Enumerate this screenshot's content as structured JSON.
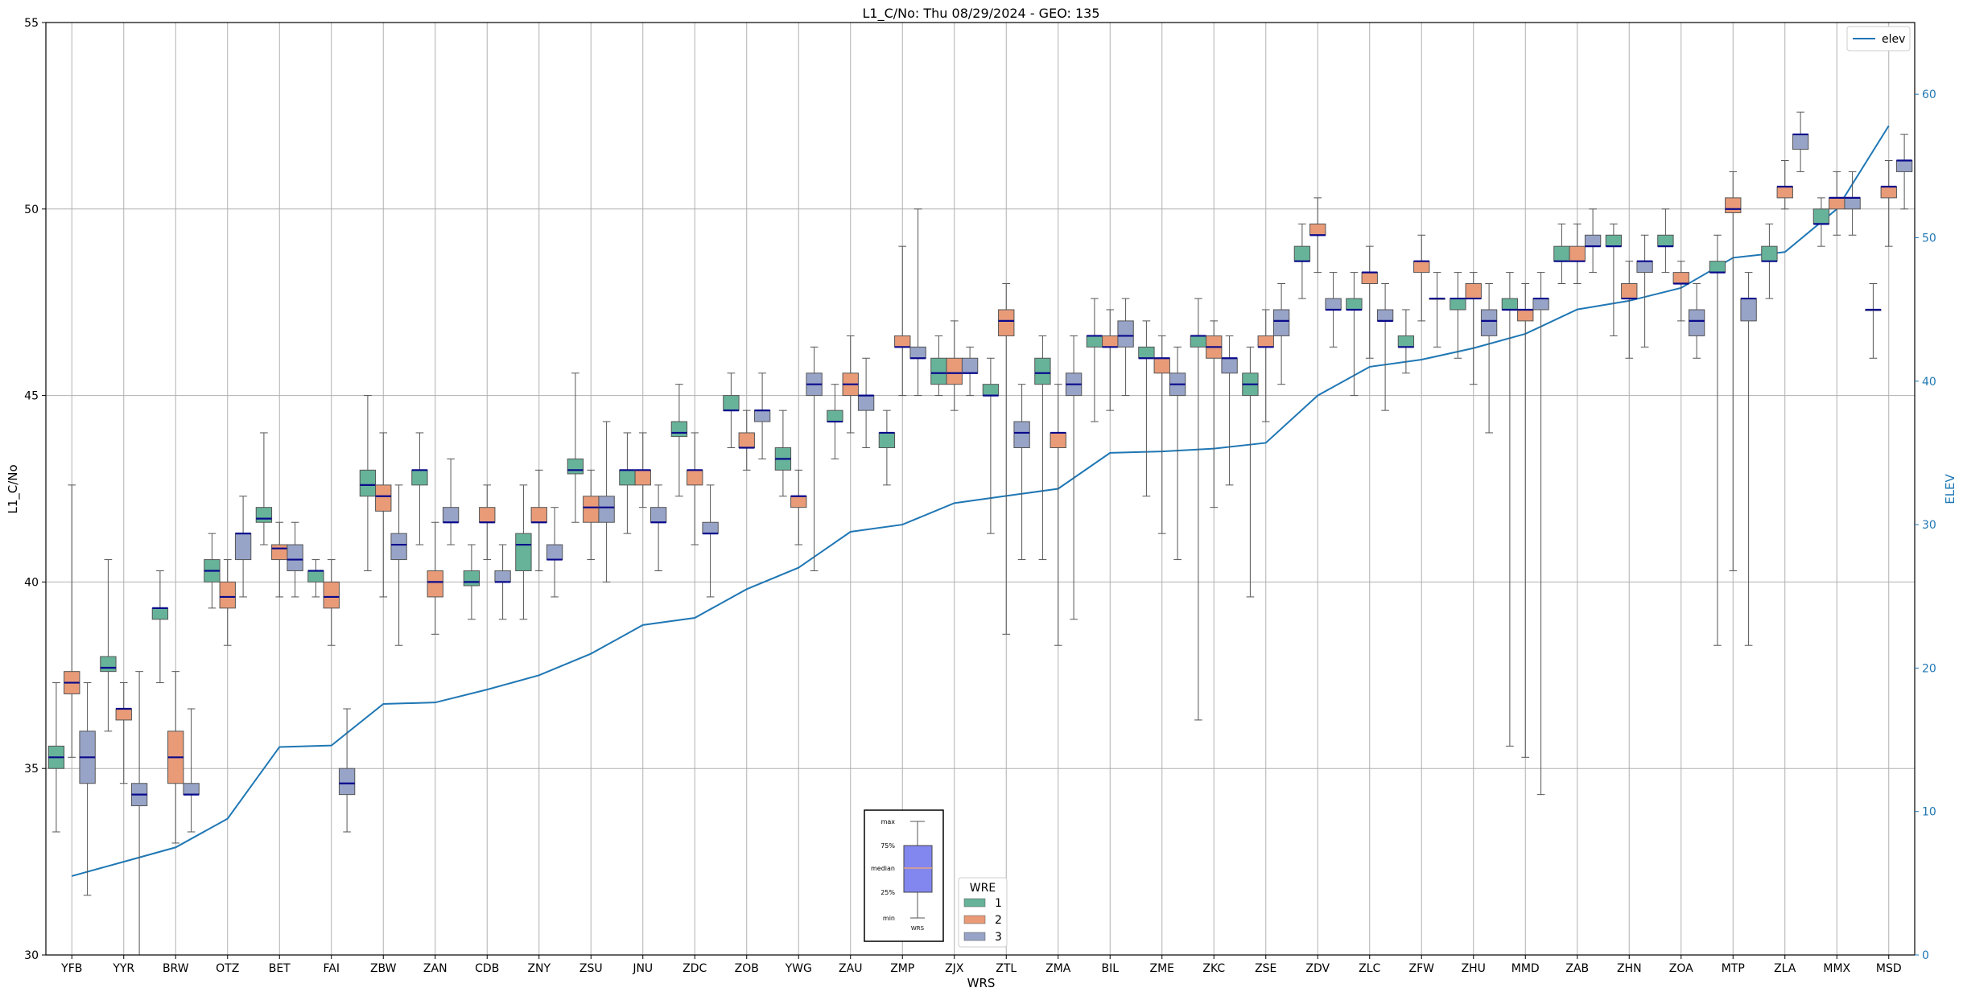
{
  "chart_data": {
    "type": "box",
    "title": "L1_C/No: Thu 08/29/2024 - GEO: 135",
    "xlabel": "WRS",
    "ylabel": "L1_C/No",
    "y2label": "ELEV",
    "ylim": [
      30,
      55
    ],
    "y2lim": [
      0,
      65
    ],
    "yticks": [
      30,
      35,
      40,
      45,
      50,
      55
    ],
    "y2ticks": [
      0,
      10,
      20,
      30,
      40,
      50,
      60
    ],
    "grid": true,
    "categories": [
      "YFB",
      "YYR",
      "BRW",
      "OTZ",
      "BET",
      "FAI",
      "ZBW",
      "ZAN",
      "CDB",
      "ZNY",
      "ZSU",
      "JNU",
      "ZDC",
      "ZOB",
      "YWG",
      "ZAU",
      "ZMP",
      "ZJX",
      "ZTL",
      "ZMA",
      "BIL",
      "ZME",
      "ZKC",
      "ZSE",
      "ZDV",
      "ZLC",
      "ZFW",
      "ZHU",
      "MMD",
      "ZAB",
      "ZHN",
      "ZOA",
      "MTP",
      "ZLA",
      "MMX",
      "MSD"
    ],
    "series": [
      {
        "name": "1",
        "color": "#66b39a",
        "boxes": [
          [
            33.3,
            35.0,
            35.3,
            35.6,
            37.3
          ],
          [
            36.0,
            37.6,
            37.7,
            38.0,
            40.6
          ],
          [
            37.3,
            39.0,
            39.3,
            39.3,
            40.3
          ],
          [
            39.3,
            40.0,
            40.3,
            40.6,
            41.3
          ],
          [
            41.0,
            41.6,
            41.7,
            42.0,
            44.0
          ],
          [
            39.6,
            40.0,
            40.3,
            40.3,
            40.6
          ],
          [
            40.3,
            42.3,
            42.6,
            43.0,
            45.0
          ],
          [
            41.0,
            42.6,
            43.0,
            43.0,
            44.0
          ],
          [
            39.0,
            39.9,
            40.0,
            40.3,
            41.0
          ],
          [
            39.0,
            40.3,
            41.0,
            41.3,
            42.6
          ],
          [
            41.6,
            42.9,
            43.0,
            43.3,
            45.6
          ],
          [
            41.3,
            42.6,
            43.0,
            43.0,
            44.0
          ],
          [
            42.3,
            43.9,
            44.0,
            44.3,
            45.3
          ],
          [
            43.6,
            44.6,
            44.6,
            45.0,
            45.6
          ],
          [
            42.3,
            43.0,
            43.3,
            43.6,
            44.6
          ],
          [
            43.3,
            44.3,
            44.3,
            44.6,
            45.3
          ],
          [
            42.6,
            43.6,
            44.0,
            44.0,
            44.6
          ],
          [
            45.0,
            45.3,
            45.6,
            46.0,
            46.6
          ],
          [
            41.3,
            45.0,
            45.0,
            45.3,
            46.0
          ],
          [
            40.6,
            45.3,
            45.6,
            46.0,
            46.6
          ],
          [
            44.3,
            46.3,
            46.6,
            46.6,
            47.6
          ],
          [
            42.3,
            46.0,
            46.0,
            46.3,
            47.0
          ],
          [
            36.3,
            46.3,
            46.6,
            46.6,
            47.6
          ],
          [
            39.6,
            45.0,
            45.3,
            45.6,
            46.3
          ],
          [
            47.6,
            48.6,
            48.6,
            49.0,
            49.6
          ],
          [
            45.0,
            47.3,
            47.3,
            47.6,
            48.3
          ],
          [
            45.6,
            46.3,
            46.3,
            46.6,
            47.3
          ],
          [
            46.0,
            47.3,
            47.6,
            47.6,
            48.3
          ],
          [
            35.6,
            47.3,
            47.3,
            47.6,
            48.3
          ],
          [
            48.0,
            48.6,
            48.6,
            49.0,
            49.6
          ],
          [
            46.6,
            49.0,
            49.0,
            49.3,
            49.6
          ],
          [
            48.3,
            49.0,
            49.0,
            49.3,
            50.0
          ],
          [
            38.3,
            48.3,
            48.3,
            48.6,
            49.3
          ],
          [
            47.6,
            48.6,
            48.6,
            49.0,
            49.6
          ],
          [
            49.0,
            49.6,
            49.6,
            50.0,
            50.3
          ],
          [
            46.0,
            47.3,
            47.3,
            47.3,
            48.0
          ]
        ]
      },
      {
        "name": "2",
        "color": "#e99b78",
        "boxes": [
          [
            35.3,
            37.0,
            37.3,
            37.6,
            42.6
          ],
          [
            34.6,
            36.3,
            36.6,
            36.6,
            37.3
          ],
          [
            33.0,
            34.6,
            35.3,
            36.0,
            37.6
          ],
          [
            38.3,
            39.3,
            39.6,
            40.0,
            40.6
          ],
          [
            39.6,
            40.6,
            40.9,
            41.0,
            41.6
          ],
          [
            38.3,
            39.3,
            39.6,
            40.0,
            40.6
          ],
          [
            39.6,
            41.9,
            42.3,
            42.6,
            44.0
          ],
          [
            38.6,
            39.6,
            40.0,
            40.3,
            41.6
          ],
          [
            40.6,
            41.6,
            41.6,
            42.0,
            42.6
          ],
          [
            40.3,
            41.6,
            41.6,
            42.0,
            43.0
          ],
          [
            40.6,
            41.6,
            42.0,
            42.3,
            43.0
          ],
          [
            42.0,
            42.6,
            43.0,
            43.0,
            44.0
          ],
          [
            41.0,
            42.6,
            43.0,
            43.0,
            44.0
          ],
          [
            43.0,
            43.6,
            43.6,
            44.0,
            44.6
          ],
          [
            41.0,
            42.0,
            42.3,
            42.3,
            43.0
          ],
          [
            44.0,
            45.0,
            45.3,
            45.6,
            46.6
          ],
          [
            45.0,
            46.3,
            46.3,
            46.6,
            49.0
          ],
          [
            44.6,
            45.3,
            45.6,
            46.0,
            47.0
          ],
          [
            38.6,
            46.6,
            47.0,
            47.3,
            48.0
          ],
          [
            38.3,
            43.6,
            44.0,
            44.0,
            45.3
          ],
          [
            44.6,
            46.3,
            46.3,
            46.6,
            47.3
          ],
          [
            41.3,
            45.6,
            46.0,
            46.0,
            46.6
          ],
          [
            42.0,
            46.0,
            46.3,
            46.6,
            47.0
          ],
          [
            44.3,
            46.3,
            46.3,
            46.6,
            47.3
          ],
          [
            48.3,
            49.3,
            49.3,
            49.6,
            50.3
          ],
          [
            46.0,
            48.0,
            48.3,
            48.3,
            49.0
          ],
          [
            47.0,
            48.3,
            48.6,
            48.6,
            49.3
          ],
          [
            45.3,
            47.6,
            47.6,
            48.0,
            48.3
          ],
          [
            35.3,
            47.0,
            47.3,
            47.3,
            48.0
          ],
          [
            48.0,
            48.6,
            48.6,
            49.0,
            49.6
          ],
          [
            46.0,
            47.6,
            47.6,
            48.0,
            48.6
          ],
          [
            47.0,
            48.0,
            48.0,
            48.3,
            48.6
          ],
          [
            40.3,
            49.9,
            50.0,
            50.3,
            51.0
          ],
          [
            50.0,
            50.3,
            50.6,
            50.6,
            51.3
          ],
          [
            49.3,
            50.0,
            50.3,
            50.3,
            51.0
          ],
          [
            49.0,
            50.3,
            50.6,
            50.6,
            51.3
          ]
        ]
      },
      {
        "name": "3",
        "color": "#97a3c7",
        "boxes": [
          [
            31.6,
            34.6,
            35.3,
            36.0,
            37.3
          ],
          [
            30.0,
            34.0,
            34.3,
            34.6,
            37.6
          ],
          [
            33.3,
            34.3,
            34.3,
            34.6,
            36.6
          ],
          [
            39.6,
            40.6,
            41.3,
            41.3,
            42.3
          ],
          [
            39.6,
            40.3,
            40.6,
            41.0,
            41.6
          ],
          [
            33.3,
            34.3,
            34.6,
            35.0,
            36.6
          ],
          [
            38.3,
            40.6,
            41.0,
            41.3,
            42.6
          ],
          [
            41.0,
            41.6,
            41.6,
            42.0,
            43.3
          ],
          [
            39.0,
            40.0,
            40.0,
            40.3,
            41.0
          ],
          [
            39.6,
            40.6,
            40.6,
            41.0,
            42.0
          ],
          [
            40.0,
            41.6,
            42.0,
            42.3,
            44.3
          ],
          [
            40.3,
            41.6,
            41.6,
            42.0,
            42.6
          ],
          [
            39.6,
            41.3,
            41.3,
            41.6,
            42.6
          ],
          [
            43.3,
            44.3,
            44.6,
            44.6,
            45.6
          ],
          [
            40.3,
            45.0,
            45.3,
            45.6,
            46.3
          ],
          [
            43.6,
            44.6,
            45.0,
            45.0,
            46.0
          ],
          [
            45.0,
            46.0,
            46.0,
            46.3,
            50.0
          ],
          [
            45.0,
            45.6,
            45.6,
            46.0,
            46.3
          ],
          [
            40.6,
            43.6,
            44.0,
            44.3,
            45.3
          ],
          [
            39.0,
            45.0,
            45.3,
            45.6,
            46.6
          ],
          [
            45.0,
            46.3,
            46.6,
            47.0,
            47.6
          ],
          [
            40.6,
            45.0,
            45.3,
            45.6,
            46.3
          ],
          [
            42.6,
            45.6,
            46.0,
            46.0,
            46.6
          ],
          [
            45.3,
            46.6,
            47.0,
            47.3,
            48.0
          ],
          [
            46.3,
            47.3,
            47.3,
            47.6,
            48.3
          ],
          [
            44.6,
            47.0,
            47.0,
            47.3,
            48.0
          ],
          [
            46.3,
            47.6,
            47.6,
            47.6,
            48.3
          ],
          [
            44.0,
            46.6,
            47.0,
            47.3,
            48.0
          ],
          [
            34.3,
            47.3,
            47.6,
            47.6,
            48.3
          ],
          [
            48.3,
            49.0,
            49.0,
            49.3,
            50.0
          ],
          [
            46.3,
            48.3,
            48.6,
            48.6,
            49.3
          ],
          [
            46.0,
            46.6,
            47.0,
            47.3,
            48.0
          ],
          [
            38.3,
            47.0,
            47.6,
            47.6,
            48.3
          ],
          [
            51.0,
            51.6,
            52.0,
            52.0,
            52.6
          ],
          [
            49.3,
            50.0,
            50.3,
            50.3,
            51.0
          ],
          [
            50.0,
            51.0,
            51.3,
            51.3,
            52.0
          ]
        ]
      }
    ],
    "elev_line": {
      "name": "elev",
      "color": "#1f77b4",
      "values": [
        5.5,
        6.5,
        7.5,
        9.5,
        14.5,
        14.6,
        17.5,
        17.6,
        18.5,
        19.5,
        21.0,
        23.0,
        23.5,
        25.5,
        27.0,
        29.5,
        30.0,
        31.5,
        32.0,
        32.5,
        35.0,
        35.1,
        35.3,
        35.7,
        39.0,
        41.0,
        41.5,
        42.3,
        43.3,
        45.0,
        45.6,
        46.5,
        48.6,
        49.0,
        52.0,
        57.8
      ]
    },
    "legend_elev": {
      "label": "elev",
      "position": "top-right"
    },
    "legend_wre": {
      "title": "WRE",
      "labels": [
        "1",
        "2",
        "3"
      ],
      "position": "bottom-center"
    },
    "inset_key": {
      "labels": [
        "max",
        "75%",
        "median",
        "25%",
        "min"
      ],
      "xlabel": "WRS",
      "position": "bottom-center"
    }
  }
}
